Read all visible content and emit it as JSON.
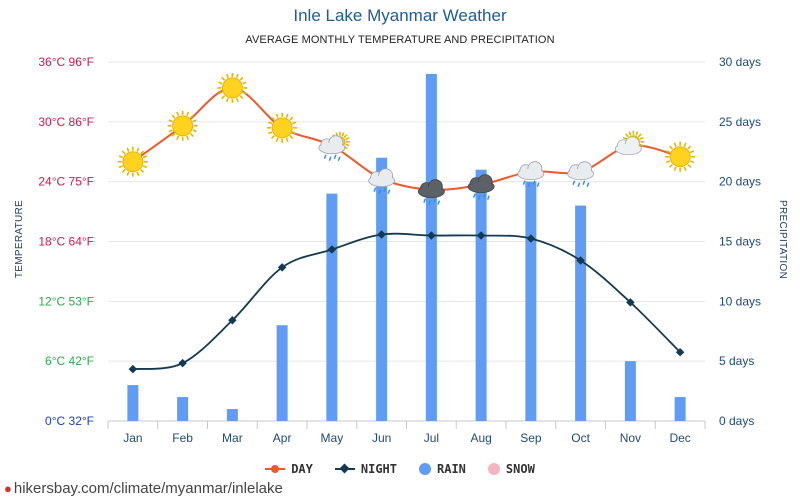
{
  "chart_data": {
    "type": "bar+line",
    "title": "Inle Lake Myanmar Weather",
    "subtitle": "AVERAGE MONTHLY TEMPERATURE AND PRECIPITATION",
    "categories": [
      "Jan",
      "Feb",
      "Mar",
      "Apr",
      "May",
      "Jun",
      "Jul",
      "Aug",
      "Sep",
      "Oct",
      "Nov",
      "Dec"
    ],
    "left_axis": {
      "label": "TEMPERATURE",
      "range": [
        0,
        36
      ],
      "ticks": [
        {
          "value": 0,
          "label": "0°C 32°F",
          "color": "#1a3cc4"
        },
        {
          "value": 6,
          "label": "6°C 42°F",
          "color": "#2ea84a"
        },
        {
          "value": 12,
          "label": "12°C 53°F",
          "color": "#2ea84a"
        },
        {
          "value": 18,
          "label": "18°C 64°F",
          "color": "#d01a4a"
        },
        {
          "value": 24,
          "label": "24°C 75°F",
          "color": "#d01a4a"
        },
        {
          "value": 30,
          "label": "30°C 86°F",
          "color": "#d01a4a"
        },
        {
          "value": 36,
          "label": "36°C 96°F",
          "color": "#d01a4a"
        }
      ]
    },
    "right_axis": {
      "label": "PRECIPITATION",
      "range": [
        0,
        30
      ],
      "ticks": [
        {
          "value": 0,
          "label": "0 days"
        },
        {
          "value": 5,
          "label": "5 days"
        },
        {
          "value": 10,
          "label": "10 days"
        },
        {
          "value": 15,
          "label": "15 days"
        },
        {
          "value": 20,
          "label": "20 days"
        },
        {
          "value": 25,
          "label": "25 days"
        },
        {
          "value": 30,
          "label": "30 days"
        }
      ]
    },
    "series": [
      {
        "name": "DAY",
        "type": "line",
        "axis": "left",
        "color": "#f0582a",
        "values": [
          26,
          29.6,
          33.4,
          29.4,
          27.6,
          24.3,
          23.2,
          23.7,
          25,
          25,
          27.6,
          26.5
        ]
      },
      {
        "name": "NIGHT",
        "type": "line",
        "axis": "left",
        "color": "#133a52",
        "values": [
          5.2,
          5.8,
          10.1,
          15.4,
          17.2,
          18.7,
          18.6,
          18.6,
          18.3,
          16.1,
          11.9,
          6.9
        ]
      },
      {
        "name": "RAIN",
        "type": "bar",
        "axis": "right",
        "color": "#5f9cf2",
        "values": [
          3,
          2,
          1,
          8,
          19,
          22,
          29,
          21,
          20,
          18,
          5,
          2
        ]
      },
      {
        "name": "SNOW",
        "type": "bar",
        "axis": "right",
        "color": "#f5b4c4",
        "values": [
          0,
          0,
          0,
          0,
          0,
          0,
          0,
          0,
          0,
          0,
          0,
          0
        ]
      }
    ],
    "weather_icons": [
      "sun",
      "sun",
      "sun",
      "sun",
      "sun-cloud-rain",
      "cloud-rain",
      "storm-cloud-rain",
      "storm-cloud-rain",
      "cloud-rain",
      "cloud-rain",
      "sun-cloud",
      "sun"
    ],
    "grid": true,
    "legend_position": "bottom"
  },
  "legend": {
    "day": "DAY",
    "night": "NIGHT",
    "rain": "RAIN",
    "snow": "SNOW"
  },
  "colors": {
    "day": "#f0582a",
    "night": "#133a52",
    "rain": "#5f9cf2",
    "snow": "#f5b4c4",
    "right_axis_text": "#1e4a7a",
    "grid": "#e6e6e6"
  },
  "footer": {
    "text": "hikersbay.com/climate/myanmar/inlelake",
    "icon": "location-pin-icon"
  }
}
